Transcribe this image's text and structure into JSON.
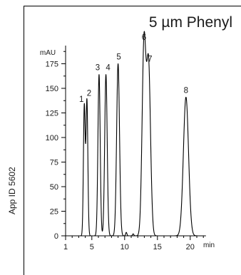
{
  "chart_data": {
    "type": "line",
    "title": "5 µm Phenyl",
    "side_label": "App ID 5602",
    "ylabel": "mAU",
    "xlabel": "min",
    "xlim": [
      1,
      22.5
    ],
    "ylim": [
      0,
      200
    ],
    "x_ticks_major": [
      5,
      10,
      15,
      20
    ],
    "x_tick_labels": [
      "1",
      "5",
      "10",
      "15",
      "20"
    ],
    "y_ticks": [
      0,
      25,
      50,
      75,
      100,
      125,
      150,
      175
    ],
    "y_tick_labels": [
      "0",
      "25",
      "50",
      "75",
      "100",
      "125",
      "150",
      "175"
    ],
    "peaks": [
      {
        "label": "1",
        "t": 3.85,
        "height": 132
      },
      {
        "label": "2",
        "t": 4.25,
        "height": 138
      },
      {
        "label": "3",
        "t": 6.1,
        "height": 164
      },
      {
        "label": "4",
        "t": 7.15,
        "height": 164
      },
      {
        "label": "5",
        "t": 9.0,
        "height": 175
      },
      {
        "label": "6",
        "t": 12.95,
        "height": 195
      },
      {
        "label": "7",
        "t": 13.65,
        "height": 173
      },
      {
        "label": "8",
        "t": 19.35,
        "height": 141
      }
    ],
    "grid": false,
    "legend": "none"
  }
}
